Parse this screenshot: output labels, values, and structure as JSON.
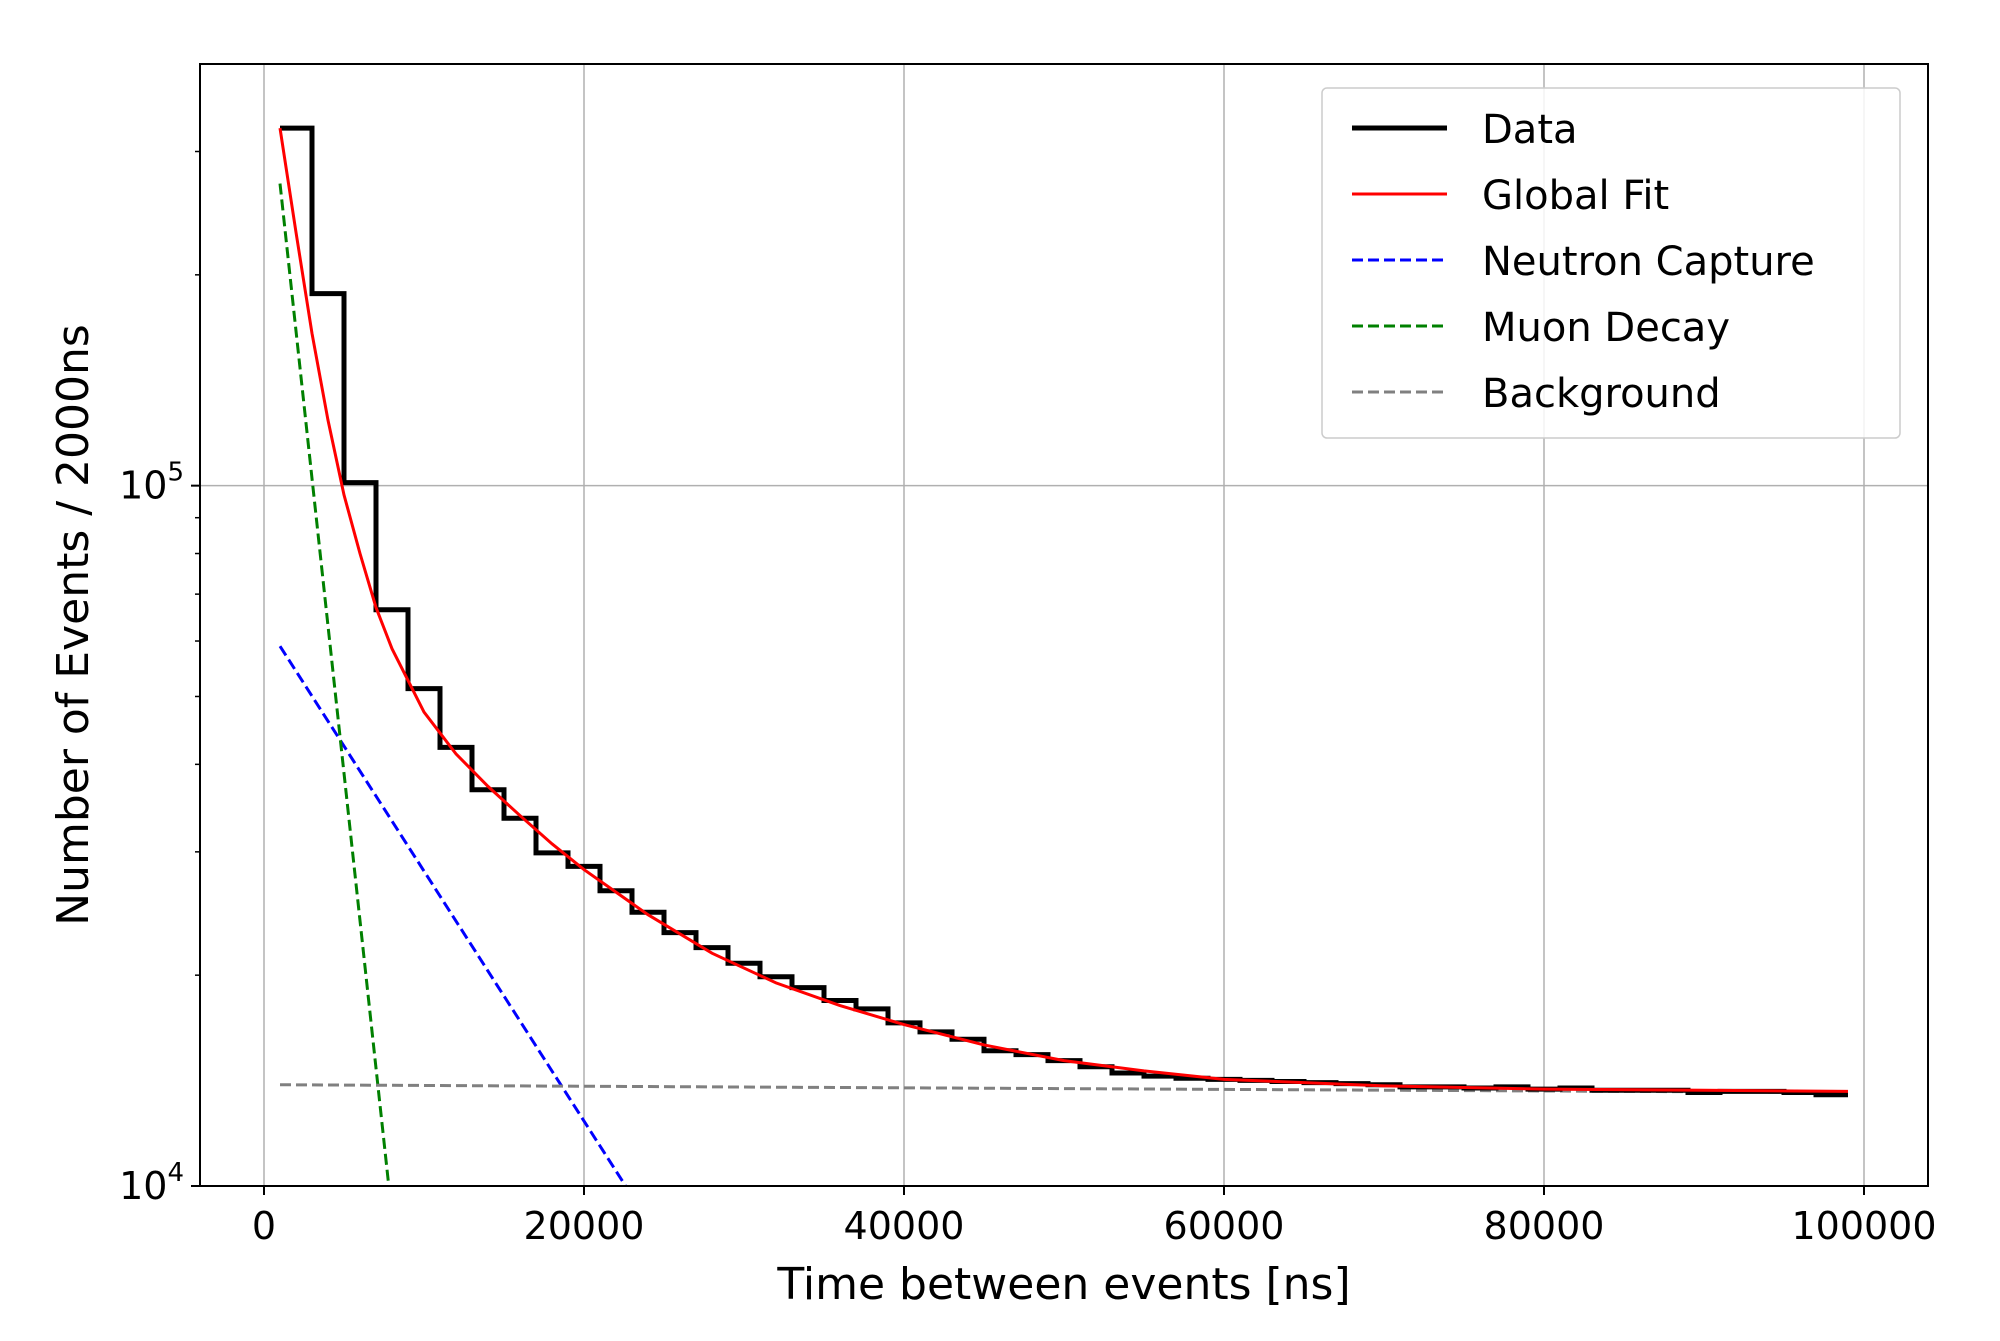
{
  "chart_data": {
    "type": "line",
    "title": "",
    "xlabel": "Time between events [ns]",
    "ylabel": "Number of Events / 2000ns",
    "xlim": [
      -4000,
      104000
    ],
    "ylim": [
      10000,
      400000
    ],
    "yscale": "log",
    "grid": true,
    "legend_position": "top-right",
    "x_ticks": [
      {
        "value": 0,
        "label": "0"
      },
      {
        "value": 20000,
        "label": "20000"
      },
      {
        "value": 40000,
        "label": "40000"
      },
      {
        "value": 60000,
        "label": "60000"
      },
      {
        "value": 80000,
        "label": "80000"
      },
      {
        "value": 100000,
        "label": "100000"
      }
    ],
    "y_ticks": [
      {
        "value": 10000,
        "base": "10",
        "exp": "4"
      },
      {
        "value": 100000,
        "base": "10",
        "exp": "5"
      }
    ],
    "bin_width": 2000,
    "series": [
      {
        "name": "Data",
        "style": "step",
        "color": "#000000",
        "dash": false,
        "bin_edges": [
          1000,
          3000,
          5000,
          7000,
          9000,
          11000,
          13000,
          15000,
          17000,
          19000,
          21000,
          23000,
          25000,
          27000,
          29000,
          31000,
          33000,
          35000,
          37000,
          39000,
          41000,
          43000,
          45000,
          47000,
          49000,
          51000,
          53000,
          55000,
          57000,
          59000,
          61000,
          63000,
          65000,
          67000,
          69000,
          71000,
          73000,
          75000,
          77000,
          79000,
          81000,
          83000,
          85000,
          87000,
          89000,
          91000,
          93000,
          95000,
          97000,
          99000
        ],
        "values": [
          324000,
          188000,
          101000,
          66500,
          51300,
          42300,
          36800,
          33500,
          29900,
          28600,
          26400,
          24600,
          23000,
          21900,
          20800,
          19900,
          19200,
          18400,
          17900,
          17100,
          16600,
          16200,
          15600,
          15400,
          15100,
          14800,
          14500,
          14350,
          14250,
          14200,
          14150,
          14100,
          14050,
          14000,
          13950,
          13850,
          13850,
          13800,
          13850,
          13750,
          13800,
          13700,
          13700,
          13700,
          13600,
          13650,
          13650,
          13600,
          13500
        ]
      },
      {
        "name": "Global Fit",
        "style": "line",
        "color": "#ff0000",
        "dash": false,
        "x": [
          1000,
          2000,
          3000,
          4000,
          5000,
          6000,
          7000,
          8000,
          10000,
          12000,
          14000,
          16000,
          18000,
          20000,
          24000,
          28000,
          32000,
          36000,
          40000,
          45000,
          50000,
          55000,
          60000,
          70000,
          80000,
          90000,
          99000
        ],
        "y": [
          324000,
          230000,
          165000,
          124000,
          97000,
          80000,
          67000,
          58500,
          47500,
          41400,
          37200,
          33800,
          30800,
          28300,
          24400,
          21500,
          19500,
          18100,
          17000,
          15900,
          15100,
          14600,
          14200,
          13900,
          13750,
          13700,
          13650
        ]
      },
      {
        "name": "Neutron Capture",
        "style": "line",
        "color": "#0000ff",
        "dash": true,
        "x": [
          1000,
          22600
        ],
        "y": [
          59000,
          10000
        ]
      },
      {
        "name": "Muon Decay",
        "style": "line",
        "color": "#008000",
        "dash": true,
        "x": [
          1000,
          7800
        ],
        "y": [
          270000,
          10000
        ]
      },
      {
        "name": "Background",
        "style": "line",
        "color": "#808080",
        "dash": true,
        "x": [
          1000,
          99000
        ],
        "y": [
          13950,
          13600
        ]
      }
    ]
  }
}
